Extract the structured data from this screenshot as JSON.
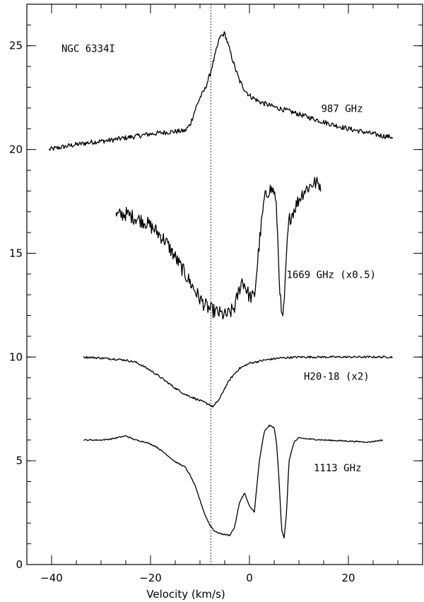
{
  "chart_data": {
    "type": "line",
    "title": "NGC 6334I",
    "xlabel": "Velocity (km/s)",
    "ylabel": "",
    "xlim": [
      -45,
      35
    ],
    "ylim": [
      0,
      27
    ],
    "xticks_major": [
      -40,
      -20,
      0,
      20
    ],
    "xticks_minor_step": 5,
    "yticks_major": [
      0,
      5,
      10,
      15,
      20,
      25
    ],
    "yticks_minor_step": 1,
    "grid": false,
    "reference_line_x": -7.8,
    "series": [
      {
        "name": "987 GHz",
        "noise": 0.12,
        "x": [
          -40.5,
          -36,
          -32,
          -28,
          -24,
          -20,
          -16,
          -13,
          -12,
          -11,
          -10,
          -9,
          -8,
          -7,
          -6,
          -5,
          -4,
          -3,
          -2,
          -1,
          0,
          2,
          5,
          8,
          12,
          16,
          20,
          24,
          27,
          29
        ],
        "y": [
          20.0,
          20.2,
          20.35,
          20.45,
          20.6,
          20.75,
          20.85,
          20.9,
          21.2,
          21.9,
          22.5,
          22.9,
          23.6,
          24.5,
          25.4,
          25.6,
          24.8,
          24.0,
          23.3,
          22.9,
          22.6,
          22.3,
          22.05,
          21.85,
          21.55,
          21.25,
          21.0,
          20.8,
          20.65,
          20.6
        ]
      },
      {
        "name": "1669 GHz (x0.5)",
        "noise": 0.35,
        "x": [
          -27,
          -25,
          -23,
          -21,
          -19,
          -17,
          -15,
          -13,
          -11,
          -10,
          -9,
          -8,
          -7,
          -6,
          -5,
          -4,
          -3,
          -2,
          -1.5,
          -1,
          0,
          1,
          2,
          3,
          4,
          5,
          5.5,
          6,
          6.5,
          7,
          7.5,
          8,
          9,
          10,
          11,
          12,
          13,
          14.5
        ],
        "y": [
          16.8,
          16.9,
          16.7,
          16.5,
          16.1,
          15.6,
          14.8,
          14.0,
          13.2,
          12.8,
          12.5,
          12.3,
          12.2,
          12.1,
          12.0,
          12.1,
          12.4,
          13.3,
          13.7,
          13.5,
          12.9,
          12.9,
          15.5,
          17.6,
          18.1,
          18.0,
          17.0,
          14.0,
          11.8,
          12.3,
          15.0,
          16.6,
          17.1,
          17.6,
          18.0,
          18.2,
          18.4,
          18.3
        ]
      },
      {
        "name": "H20-18 (x2)",
        "noise": 0.05,
        "x": [
          -33.5,
          -30,
          -27,
          -25,
          -23,
          -21,
          -19,
          -17,
          -15,
          -13,
          -11,
          -10,
          -9,
          -8,
          -7.5,
          -7,
          -6,
          -5,
          -4,
          -3,
          -2,
          0,
          3,
          6,
          10,
          15,
          20,
          25,
          29
        ],
        "y": [
          10.0,
          9.95,
          9.9,
          9.85,
          9.75,
          9.5,
          9.2,
          8.85,
          8.5,
          8.2,
          8.0,
          7.9,
          7.8,
          7.7,
          7.6,
          7.7,
          8.0,
          8.5,
          8.9,
          9.2,
          9.45,
          9.7,
          9.85,
          9.95,
          10.0,
          10.0,
          10.0,
          10.0,
          10.0
        ]
      },
      {
        "name": "1113 GHz",
        "noise": 0.03,
        "x": [
          -33.5,
          -30,
          -28,
          -26,
          -25,
          -23,
          -21,
          -19,
          -17,
          -15,
          -13,
          -12,
          -11,
          -10,
          -9,
          -8,
          -7,
          -6,
          -5,
          -4,
          -3,
          -2,
          -1,
          0,
          1,
          2,
          3,
          4,
          5,
          5.5,
          6,
          6.5,
          7,
          7.5,
          8,
          9,
          10,
          12,
          15,
          20,
          24,
          27
        ],
        "y": [
          6.0,
          6.0,
          6.05,
          6.15,
          6.2,
          6.0,
          5.9,
          5.7,
          5.35,
          4.95,
          4.7,
          4.3,
          3.8,
          3.1,
          2.4,
          1.9,
          1.6,
          1.5,
          1.45,
          1.4,
          1.8,
          3.0,
          3.45,
          2.8,
          2.55,
          5.0,
          6.4,
          6.7,
          6.6,
          5.8,
          4.0,
          1.7,
          1.3,
          2.5,
          5.0,
          5.9,
          6.1,
          6.05,
          6.0,
          5.95,
          5.9,
          6.0
        ]
      }
    ],
    "annotations": [
      {
        "text": "NGC 6334I",
        "x": -38,
        "y": 24.7
      },
      {
        "text": "987 GHz",
        "x": 14.5,
        "y": 21.8
      },
      {
        "text": "1669 GHz (x0.5)",
        "x": 7.5,
        "y": 13.8
      },
      {
        "text": "H20-18 (x2)",
        "x": 11,
        "y": 8.9
      },
      {
        "text": "1113 GHz",
        "x": 13,
        "y": 4.5
      }
    ]
  }
}
